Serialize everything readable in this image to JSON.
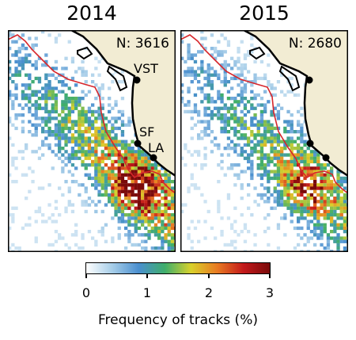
{
  "panels": [
    {
      "title": "2014",
      "count_label": "N: 3616",
      "cities": [
        "VST",
        "SF",
        "LA"
      ],
      "colors": {
        "land": "#f2ecd3",
        "coast": "#000000",
        "boundary": "#d7262b"
      },
      "density_seed": 7,
      "density_level": 1.0
    },
    {
      "title": "2015",
      "count_label": "N: 2680",
      "cities": [],
      "colors": {
        "land": "#f2ecd3",
        "coast": "#000000",
        "boundary": "#d7262b"
      },
      "density_seed": 11,
      "density_level": 0.8
    }
  ],
  "colorbar": {
    "ticks": [
      "0",
      "1",
      "2",
      "3"
    ],
    "range": [
      0,
      3
    ],
    "label": "Frequency of tracks (%)",
    "colormap": [
      "#ffffff",
      "#a6cde8",
      "#4a8fcf",
      "#3fae6b",
      "#d9d12c",
      "#e87a22",
      "#c3191b",
      "#7a0a0a"
    ]
  }
}
